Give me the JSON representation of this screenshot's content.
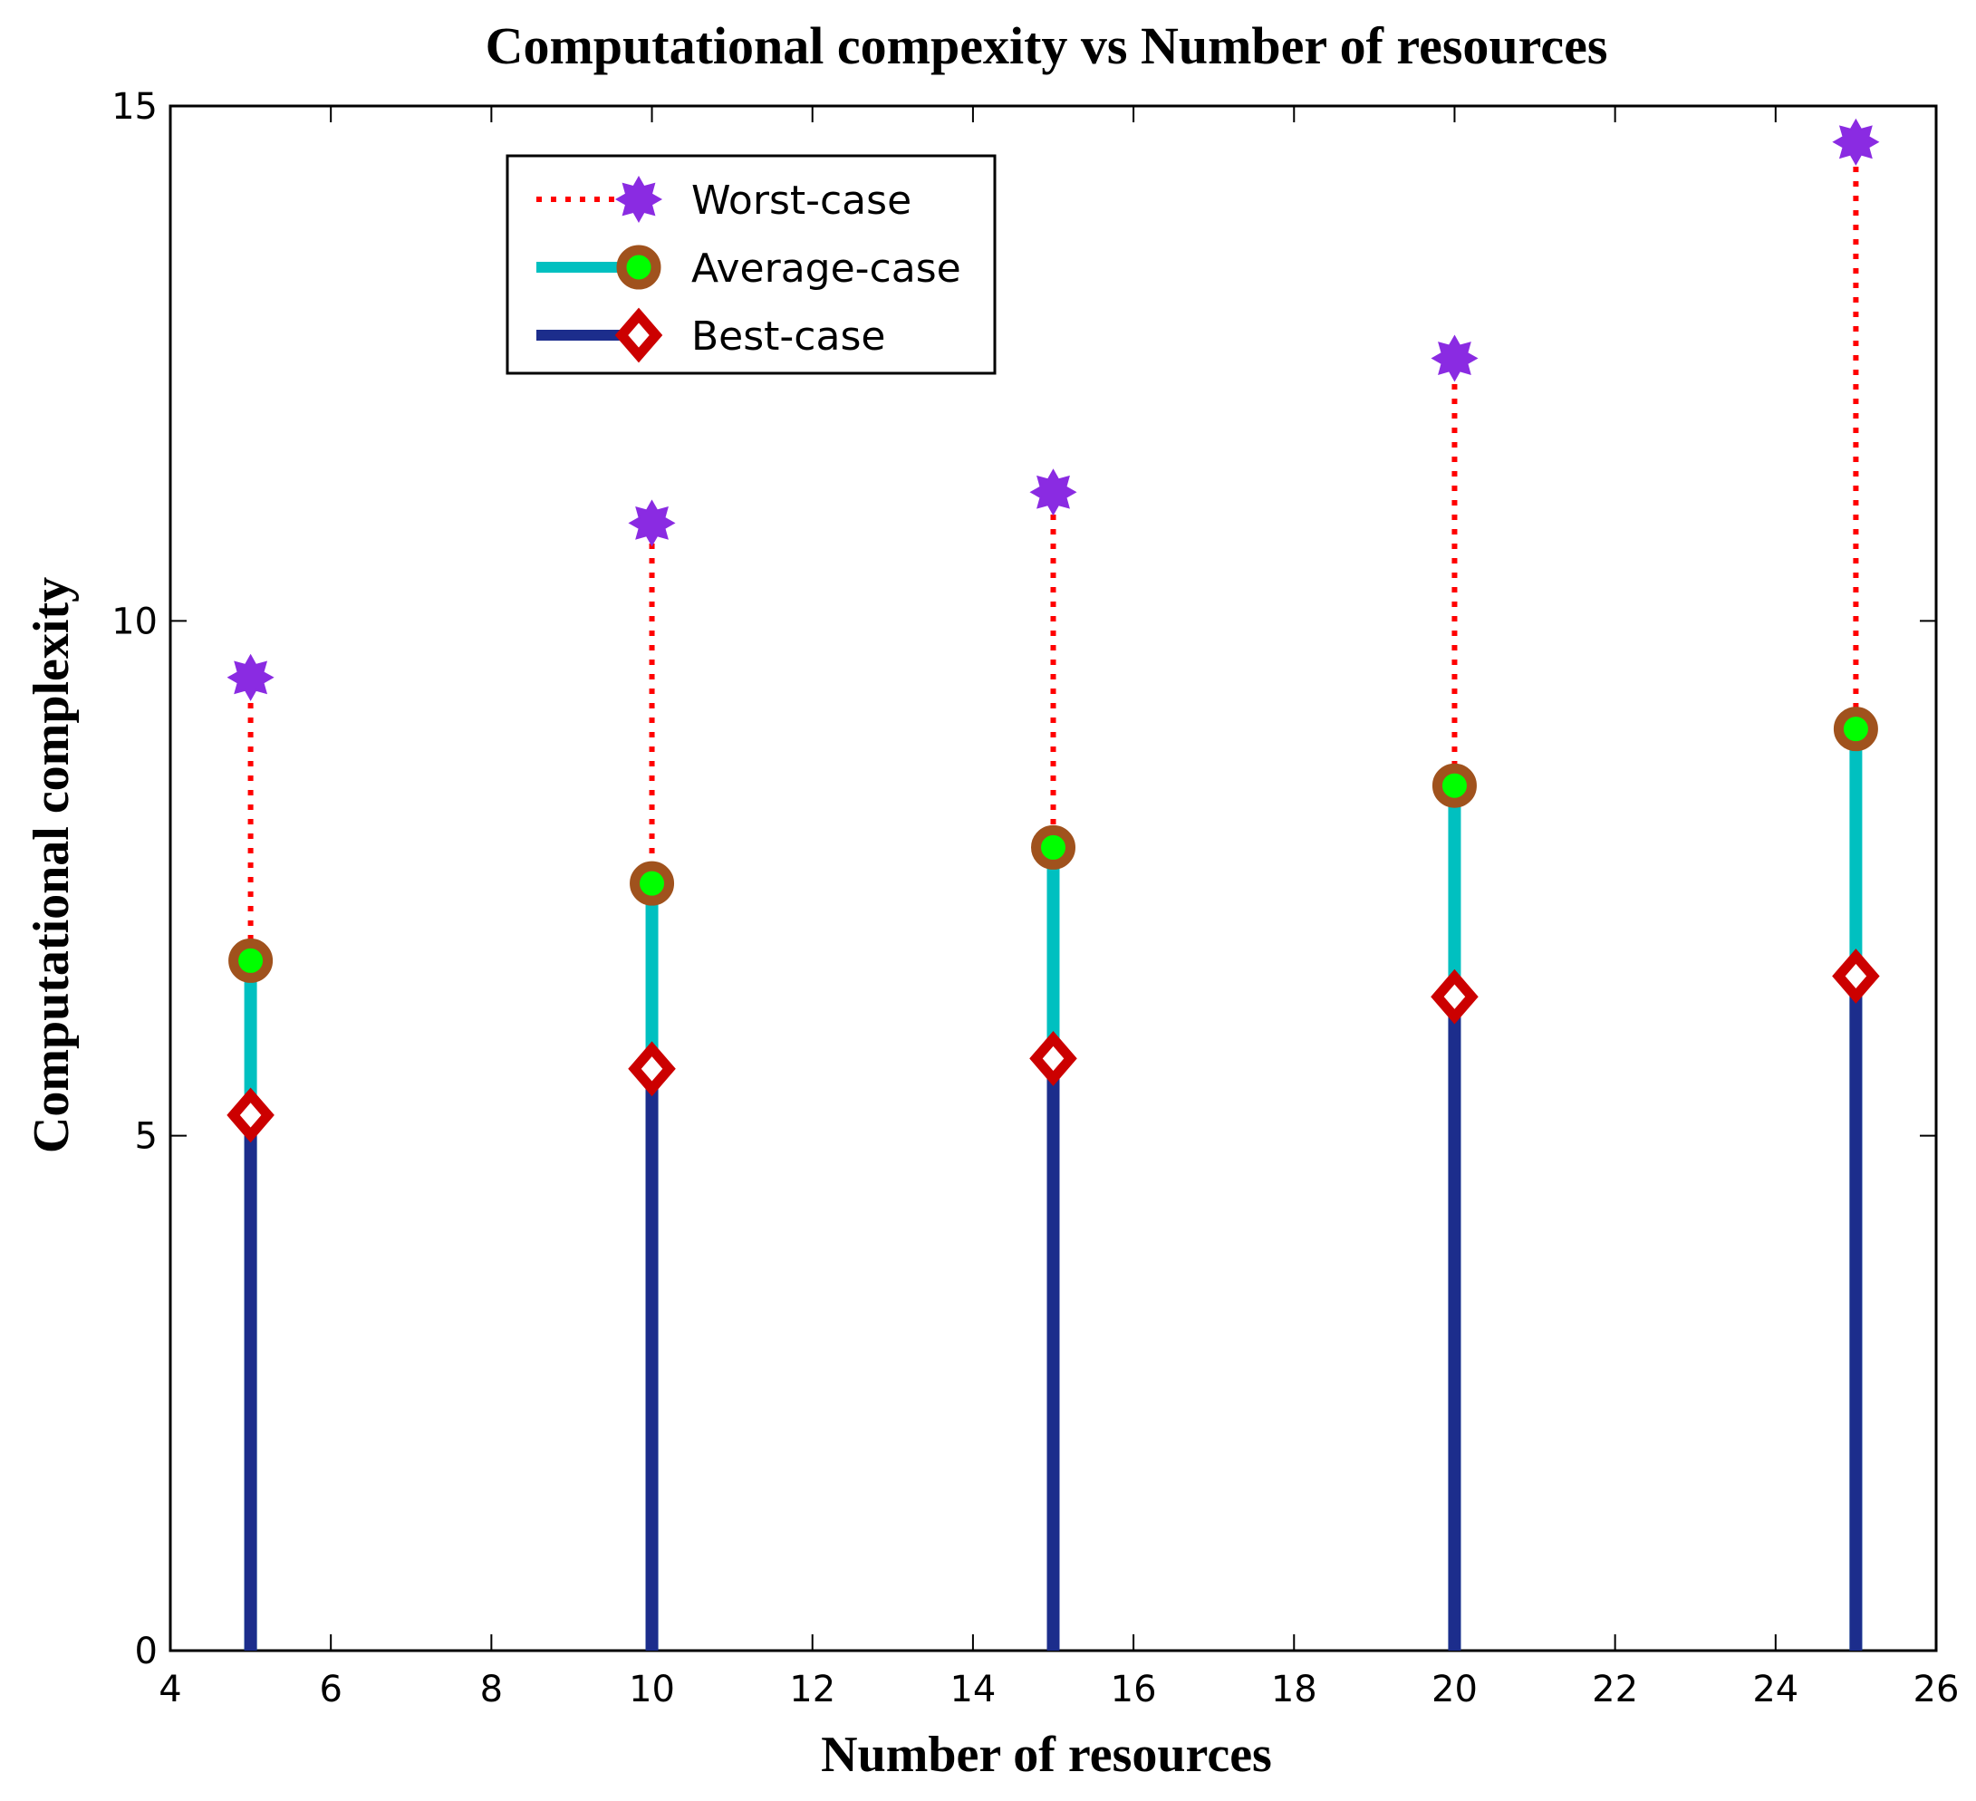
{
  "chart_data": {
    "type": "stem",
    "title": "Computational compexity vs Number of resources",
    "xlabel": "Number of resources",
    "ylabel": "Computational complexity",
    "xlim": [
      4,
      26
    ],
    "ylim": [
      0,
      15
    ],
    "xticks": [
      4,
      6,
      8,
      10,
      12,
      14,
      16,
      18,
      20,
      22,
      24,
      26
    ],
    "yticks": [
      0,
      5,
      10,
      15
    ],
    "x": [
      5,
      10,
      15,
      20,
      25
    ],
    "series": [
      {
        "name": "Worst-case",
        "line_color": "#ff0000",
        "line_style": "dotted",
        "marker": "star",
        "marker_color": "#8a2be2",
        "values": [
          9.45,
          10.95,
          11.25,
          12.55,
          14.65
        ]
      },
      {
        "name": "Average-case",
        "line_color": "#00c0c0",
        "line_style": "solid",
        "marker": "circle",
        "marker_edge": "#a0521d",
        "marker_fill": "#00ff00",
        "values": [
          6.7,
          7.45,
          7.8,
          8.4,
          8.95
        ]
      },
      {
        "name": "Best-case",
        "line_color": "#1c2d8c",
        "line_style": "solid",
        "marker": "diamond",
        "marker_color": "#cc0000",
        "values": [
          5.2,
          5.65,
          5.75,
          6.35,
          6.55
        ]
      }
    ],
    "legend": "top-left",
    "grid": false
  }
}
